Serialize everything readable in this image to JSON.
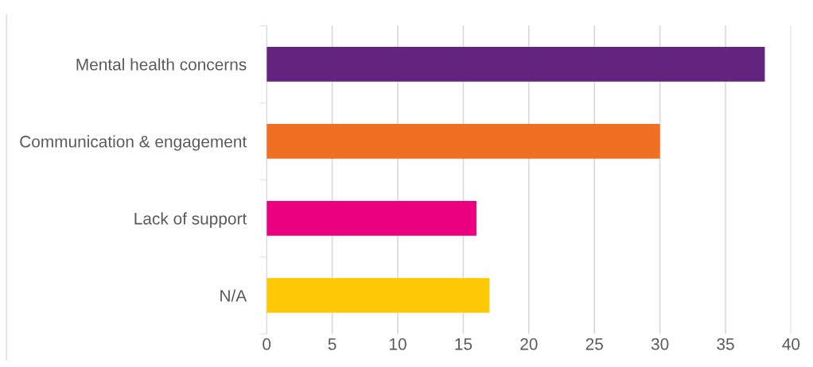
{
  "chart_data": {
    "type": "bar",
    "orientation": "horizontal",
    "categories": [
      "Mental health concerns",
      "Communication & engagement",
      "Lack of support",
      "N/A"
    ],
    "values": [
      38,
      30,
      16,
      17
    ],
    "colors": [
      "#63247f",
      "#f07023",
      "#eb0080",
      "#ffc907"
    ],
    "xlim": [
      0,
      40
    ],
    "xticks": [
      0,
      5,
      10,
      15,
      20,
      25,
      30,
      35,
      40
    ],
    "grid": "x"
  }
}
